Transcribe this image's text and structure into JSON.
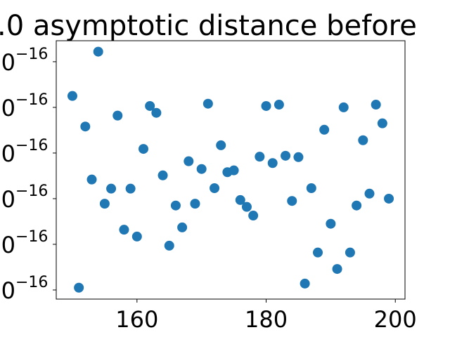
{
  "chart_data": {
    "type": "scatter",
    "title": ".0 asymptotic distance before",
    "color": "#1f77b4",
    "x": [
      150,
      151,
      152,
      153,
      154,
      155,
      156,
      157,
      158,
      159,
      160,
      161,
      162,
      163,
      164,
      165,
      166,
      167,
      168,
      169,
      170,
      171,
      172,
      173,
      174,
      175,
      176,
      177,
      178,
      179,
      180,
      181,
      182,
      183,
      184,
      185,
      186,
      187,
      188,
      189,
      190,
      191,
      192,
      193,
      194,
      195,
      196,
      197,
      198,
      199
    ],
    "values": [
      5.25,
      1.05,
      4.58,
      3.42,
      6.22,
      2.89,
      3.22,
      4.82,
      2.32,
      3.22,
      2.17,
      4.09,
      5.03,
      4.88,
      3.51,
      1.97,
      2.85,
      2.37,
      3.82,
      2.89,
      3.65,
      5.08,
      3.23,
      4.17,
      3.58,
      3.62,
      2.97,
      2.82,
      2.63,
      3.92,
      5.03,
      3.78,
      5.06,
      3.94,
      2.95,
      3.91,
      1.14,
      3.23,
      1.82,
      4.51,
      2.45,
      1.46,
      5.0,
      1.82,
      2.85,
      4.28,
      3.11,
      5.06,
      4.65,
      3.0
    ],
    "xlim": [
      147.5,
      201.5
    ],
    "xticks": [
      160,
      180,
      200
    ],
    "ylim": [
      0.8,
      6.46
    ],
    "yticks": [
      {
        "value": 1,
        "label": "0",
        "exponent": "−16"
      },
      {
        "value": 2,
        "label": "0",
        "exponent": "−16"
      },
      {
        "value": 3,
        "label": "0",
        "exponent": "−16"
      },
      {
        "value": 4,
        "label": "0",
        "exponent": "−16"
      },
      {
        "value": 5,
        "label": "0",
        "exponent": "−16"
      },
      {
        "value": 6,
        "label": "0",
        "exponent": "−16"
      }
    ]
  }
}
